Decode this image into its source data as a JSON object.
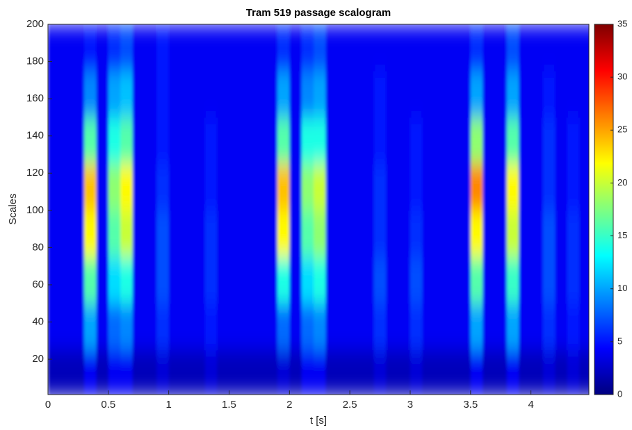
{
  "chart_data": {
    "type": "heatmap",
    "title": "Tram 519 passage scalogram",
    "x_label": "t [s]",
    "y_label": "Scales",
    "colormap": "jet",
    "clim": [
      0,
      35
    ],
    "cticks": [
      0,
      5,
      10,
      15,
      20,
      25,
      30,
      35
    ],
    "xlim": [
      0,
      4.48
    ],
    "ylim": [
      1,
      200
    ],
    "xticks": [
      0,
      0.5,
      1,
      1.5,
      2,
      2.5,
      3,
      3.5,
      4
    ],
    "yticks": [
      20,
      40,
      60,
      80,
      100,
      120,
      140,
      160,
      180,
      200
    ],
    "x": [
      0.05,
      0.15,
      0.25,
      0.35,
      0.45,
      0.55,
      0.65,
      0.75,
      0.85,
      0.95,
      1.05,
      1.15,
      1.25,
      1.35,
      1.45,
      1.55,
      1.65,
      1.75,
      1.85,
      1.95,
      2.05,
      2.15,
      2.25,
      2.35,
      2.45,
      2.55,
      2.65,
      2.75,
      2.85,
      2.95,
      3.05,
      3.15,
      3.25,
      3.35,
      3.45,
      3.55,
      3.65,
      3.75,
      3.85,
      3.95,
      4.05,
      4.15,
      4.25,
      4.35,
      4.45
    ],
    "y": [
      12.5,
      37.5,
      62.5,
      87.5,
      112.5,
      137.5,
      162.5,
      187.5
    ],
    "z": [
      [
        2,
        2,
        2,
        4,
        2,
        4,
        4,
        2,
        2,
        3,
        2,
        2,
        2,
        3,
        2,
        2,
        2,
        2,
        2,
        3,
        2,
        4,
        4,
        2,
        2,
        2,
        2,
        3,
        2,
        2,
        3,
        2,
        2,
        2,
        2,
        4,
        2,
        2,
        4,
        2,
        2,
        3,
        2,
        3,
        2
      ],
      [
        4,
        4,
        4,
        10,
        4,
        8,
        9,
        4,
        4,
        6,
        4,
        4,
        4,
        5,
        4,
        4,
        4,
        4,
        4,
        8,
        4,
        8,
        9,
        4,
        4,
        4,
        4,
        6,
        4,
        4,
        6,
        4,
        4,
        4,
        4,
        10,
        4,
        4,
        10,
        4,
        4,
        6,
        4,
        5,
        4
      ],
      [
        4,
        4,
        4,
        16,
        4,
        12,
        14,
        4,
        4,
        7,
        4,
        4,
        4,
        6,
        4,
        4,
        4,
        4,
        4,
        14,
        4,
        12,
        14,
        4,
        4,
        4,
        4,
        7,
        4,
        4,
        7,
        4,
        4,
        4,
        4,
        16,
        4,
        4,
        15,
        4,
        4,
        7,
        4,
        6,
        4
      ],
      [
        4,
        4,
        4,
        22,
        4,
        16,
        20,
        4,
        4,
        7,
        4,
        4,
        4,
        6,
        4,
        4,
        4,
        4,
        4,
        22,
        4,
        16,
        18,
        4,
        4,
        4,
        4,
        6,
        4,
        4,
        6,
        4,
        4,
        4,
        4,
        22,
        4,
        4,
        20,
        4,
        4,
        7,
        4,
        6,
        4
      ],
      [
        4,
        4,
        4,
        24,
        4,
        18,
        22,
        4,
        4,
        6,
        4,
        4,
        4,
        5,
        4,
        4,
        4,
        4,
        4,
        24,
        4,
        18,
        20,
        4,
        4,
        4,
        4,
        6,
        4,
        4,
        5,
        4,
        4,
        4,
        4,
        26,
        4,
        4,
        22,
        4,
        4,
        6,
        4,
        5,
        4
      ],
      [
        4,
        4,
        4,
        16,
        4,
        14,
        16,
        4,
        4,
        5,
        4,
        4,
        4,
        5,
        4,
        4,
        4,
        4,
        4,
        16,
        4,
        14,
        14,
        4,
        4,
        4,
        4,
        5,
        4,
        4,
        5,
        4,
        4,
        4,
        4,
        18,
        4,
        4,
        16,
        4,
        4,
        6,
        4,
        5,
        4
      ],
      [
        4,
        4,
        4,
        9,
        4,
        10,
        11,
        4,
        4,
        5,
        4,
        4,
        4,
        4,
        4,
        4,
        4,
        4,
        4,
        10,
        4,
        9,
        10,
        4,
        4,
        4,
        4,
        5,
        4,
        4,
        4,
        4,
        4,
        4,
        4,
        10,
        4,
        4,
        10,
        4,
        4,
        5,
        4,
        4,
        4
      ],
      [
        4,
        4,
        4,
        5,
        4,
        6,
        7,
        4,
        4,
        5,
        4,
        4,
        4,
        4,
        4,
        4,
        4,
        4,
        4,
        6,
        4,
        6,
        7,
        4,
        4,
        4,
        4,
        4,
        4,
        4,
        4,
        4,
        4,
        4,
        4,
        6,
        4,
        4,
        7,
        4,
        4,
        4,
        4,
        4,
        4
      ]
    ]
  }
}
